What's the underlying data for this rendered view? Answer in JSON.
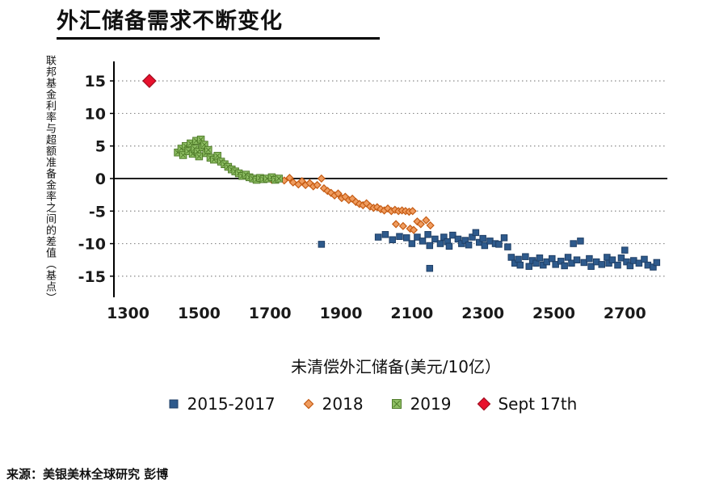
{
  "title": "外汇储备需求不断变化",
  "source": "来源：美银美林全球研究 彭博",
  "colors": {
    "blue": "#2e5a8c",
    "orange_stroke": "#c55a11",
    "orange_fill": "#ef9c5f",
    "green_stroke": "#4e7a28",
    "green_fill": "#8fbf64",
    "red": "#e8112d",
    "gridline": "#8a8a8a",
    "axis": "#000000"
  },
  "chart_data": {
    "type": "scatter",
    "title": "外汇储备需求不断变化",
    "xlabel": "未清偿外汇储备(美元/10亿）",
    "ylabel": "联邦基金利率与超额准备金率之间的差值（基点）",
    "xlim": [
      1260,
      2820
    ],
    "ylim": [
      -17.5,
      17.5
    ],
    "xticks": [
      1300,
      1500,
      1700,
      1900,
      2100,
      2300,
      2500,
      2700
    ],
    "yticks": [
      -15,
      -10,
      -5,
      0,
      5,
      10,
      15
    ],
    "grid": "horizontal-dotted",
    "legend_position": "bottom",
    "series": [
      {
        "name": "2015-2017",
        "marker": "square",
        "size": 7.5,
        "fill": "#2e5a8c",
        "stroke": "#1f3f66",
        "points": [
          [
            1845,
            -10.1
          ],
          [
            2005,
            -9.0
          ],
          [
            2025,
            -8.6
          ],
          [
            2045,
            -9.4
          ],
          [
            2065,
            -8.9
          ],
          [
            2085,
            -9.1
          ],
          [
            2100,
            -10.0
          ],
          [
            2115,
            -9.0
          ],
          [
            2130,
            -9.6
          ],
          [
            2145,
            -8.6
          ],
          [
            2150,
            -10.3
          ],
          [
            2165,
            -9.3
          ],
          [
            2180,
            -10.0
          ],
          [
            2190,
            -9.0
          ],
          [
            2200,
            -9.7
          ],
          [
            2205,
            -10.4
          ],
          [
            2215,
            -8.7
          ],
          [
            2230,
            -9.3
          ],
          [
            2240,
            -10.0
          ],
          [
            2250,
            -9.5
          ],
          [
            2260,
            -10.2
          ],
          [
            2270,
            -9.0
          ],
          [
            2280,
            -8.3
          ],
          [
            2290,
            -9.8
          ],
          [
            2300,
            -9.2
          ],
          [
            2305,
            -10.3
          ],
          [
            2320,
            -9.6
          ],
          [
            2335,
            -10.0
          ],
          [
            2345,
            -10.1
          ],
          [
            2360,
            -9.1
          ],
          [
            2370,
            -10.5
          ],
          [
            2150,
            -13.8
          ],
          [
            2380,
            -12.1
          ],
          [
            2390,
            -13.0
          ],
          [
            2400,
            -12.4
          ],
          [
            2405,
            -13.3
          ],
          [
            2420,
            -12.0
          ],
          [
            2430,
            -13.5
          ],
          [
            2440,
            -12.6
          ],
          [
            2450,
            -13.0
          ],
          [
            2460,
            -12.2
          ],
          [
            2470,
            -13.3
          ],
          [
            2480,
            -12.8
          ],
          [
            2495,
            -12.3
          ],
          [
            2505,
            -13.2
          ],
          [
            2520,
            -12.7
          ],
          [
            2530,
            -13.4
          ],
          [
            2540,
            -12.1
          ],
          [
            2550,
            -13.0
          ],
          [
            2555,
            -10.0
          ],
          [
            2565,
            -12.5
          ],
          [
            2575,
            -9.6
          ],
          [
            2585,
            -12.9
          ],
          [
            2600,
            -12.3
          ],
          [
            2605,
            -13.5
          ],
          [
            2620,
            -12.8
          ],
          [
            2635,
            -13.2
          ],
          [
            2650,
            -12.1
          ],
          [
            2655,
            -13.0
          ],
          [
            2665,
            -12.5
          ],
          [
            2680,
            -13.3
          ],
          [
            2690,
            -12.2
          ],
          [
            2700,
            -11.0
          ],
          [
            2705,
            -12.8
          ],
          [
            2715,
            -13.4
          ],
          [
            2725,
            -12.6
          ],
          [
            2740,
            -13.0
          ],
          [
            2755,
            -12.4
          ],
          [
            2765,
            -13.3
          ],
          [
            2780,
            -13.6
          ],
          [
            2790,
            -12.9
          ]
        ]
      },
      {
        "name": "2018",
        "marker": "diamond",
        "size": 8.5,
        "fill": "#ef9c5f",
        "stroke": "#c55a11",
        "points": [
          [
            1705,
            -0.2
          ],
          [
            1720,
            0.0
          ],
          [
            1740,
            -0.3
          ],
          [
            1755,
            0.1
          ],
          [
            1765,
            -0.6
          ],
          [
            1780,
            -0.9
          ],
          [
            1790,
            -0.4
          ],
          [
            1800,
            -1.0
          ],
          [
            1812,
            -0.7
          ],
          [
            1822,
            -1.2
          ],
          [
            1833,
            -1.0
          ],
          [
            1845,
            0.0
          ],
          [
            1852,
            -1.5
          ],
          [
            1862,
            -1.9
          ],
          [
            1872,
            -2.2
          ],
          [
            1882,
            -2.6
          ],
          [
            1892,
            -2.3
          ],
          [
            1902,
            -3.0
          ],
          [
            1912,
            -2.8
          ],
          [
            1922,
            -3.3
          ],
          [
            1932,
            -3.1
          ],
          [
            1942,
            -3.6
          ],
          [
            1952,
            -3.9
          ],
          [
            1962,
            -4.1
          ],
          [
            1972,
            -3.8
          ],
          [
            1982,
            -4.3
          ],
          [
            1992,
            -4.5
          ],
          [
            2002,
            -4.4
          ],
          [
            2012,
            -4.7
          ],
          [
            2022,
            -4.9
          ],
          [
            2032,
            -4.6
          ],
          [
            2042,
            -5.0
          ],
          [
            2052,
            -4.8
          ],
          [
            2062,
            -5.0
          ],
          [
            2072,
            -4.9
          ],
          [
            2082,
            -5.0
          ],
          [
            2092,
            -5.1
          ],
          [
            2102,
            -5.0
          ],
          [
            2055,
            -7.0
          ],
          [
            2075,
            -7.3
          ],
          [
            2095,
            -7.7
          ],
          [
            2105,
            -7.9
          ],
          [
            2115,
            -6.6
          ],
          [
            2125,
            -7.0
          ],
          [
            2140,
            -6.4
          ],
          [
            2152,
            -7.2
          ]
        ]
      },
      {
        "name": "2019",
        "marker": "square-x",
        "size": 8.5,
        "fill": "#8fbf64",
        "stroke": "#4e7a28",
        "points": [
          [
            1440,
            4.0
          ],
          [
            1450,
            4.6
          ],
          [
            1455,
            3.6
          ],
          [
            1462,
            5.0
          ],
          [
            1470,
            4.2
          ],
          [
            1476,
            5.4
          ],
          [
            1482,
            3.8
          ],
          [
            1488,
            4.6
          ],
          [
            1492,
            5.8
          ],
          [
            1496,
            4.1
          ],
          [
            1500,
            3.4
          ],
          [
            1505,
            6.0
          ],
          [
            1510,
            4.8
          ],
          [
            1515,
            5.2
          ],
          [
            1520,
            3.9
          ],
          [
            1526,
            4.4
          ],
          [
            1532,
            3.2
          ],
          [
            1542,
            2.9
          ],
          [
            1552,
            3.5
          ],
          [
            1562,
            2.6
          ],
          [
            1572,
            2.2
          ],
          [
            1582,
            1.8
          ],
          [
            1592,
            1.4
          ],
          [
            1602,
            1.1
          ],
          [
            1612,
            0.8
          ],
          [
            1622,
            0.4
          ],
          [
            1632,
            0.6
          ],
          [
            1642,
            0.2
          ],
          [
            1652,
            0.0
          ],
          [
            1662,
            -0.2
          ],
          [
            1672,
            0.1
          ],
          [
            1682,
            -0.1
          ],
          [
            1692,
            0.0
          ],
          [
            1705,
            0.2
          ],
          [
            1715,
            -0.2
          ],
          [
            1725,
            0.0
          ]
        ]
      },
      {
        "name": "Sept 17th",
        "marker": "diamond",
        "size": 16,
        "fill": "#e8112d",
        "stroke": "#a00d20",
        "points": [
          [
            1360,
            15.0
          ]
        ]
      }
    ]
  }
}
